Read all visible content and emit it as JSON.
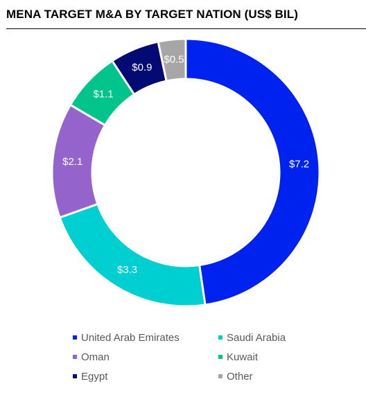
{
  "chart_data": {
    "type": "pie",
    "title": "MENA TARGET M&A BY TARGET NATION (US$ BIL)",
    "categories": [
      "United Arab Emirates",
      "Saudi Arabia",
      "Oman",
      "Kuwait",
      "Egypt",
      "Other"
    ],
    "values": [
      7.2,
      3.3,
      2.1,
      1.1,
      0.9,
      0.5
    ],
    "data_labels": [
      "$7.2",
      "$3.3",
      "$2.1",
      "$1.1",
      "$0.9",
      "$0.5"
    ],
    "colors": [
      "#0022ee",
      "#00cfd1",
      "#9464cc",
      "#00c48c",
      "#040a73",
      "#a6a6a6"
    ],
    "label_color": "#ffffff",
    "style": "donut",
    "legend_position": "bottom"
  }
}
